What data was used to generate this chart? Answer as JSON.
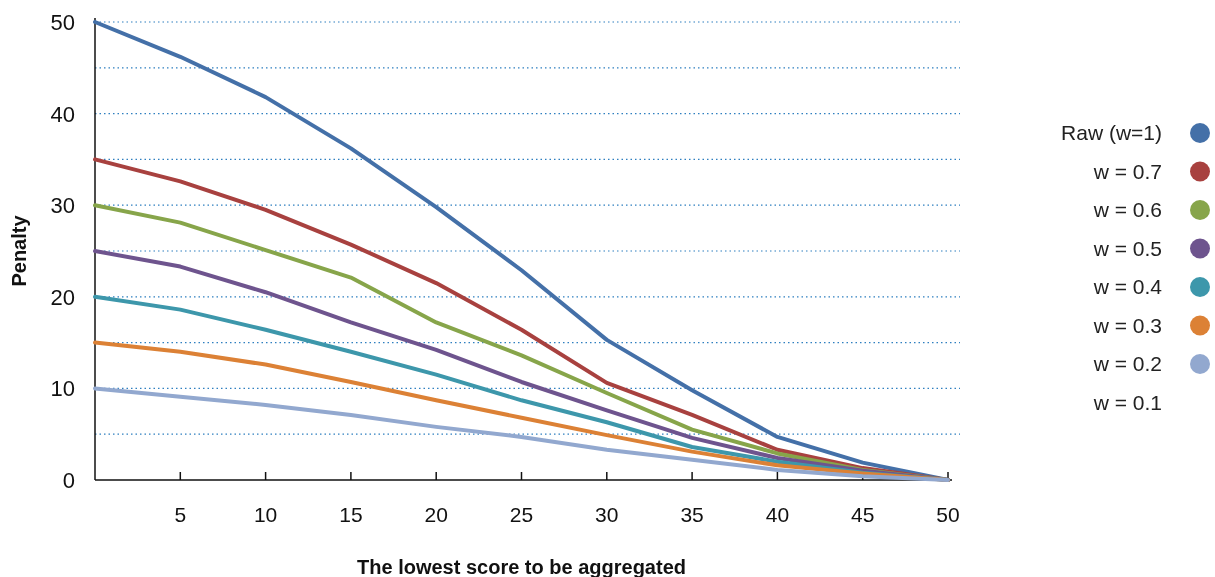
{
  "chart_data": {
    "type": "line",
    "xlabel": "The lowest score to be aggregated",
    "ylabel": "Penalty",
    "x": [
      0,
      5,
      10,
      15,
      20,
      25,
      30,
      35,
      40,
      45,
      50
    ],
    "series": [
      {
        "name": "Raw (w=1)",
        "color": "#4470a8",
        "values": [
          50,
          46.2,
          41.8,
          36.2,
          29.8,
          22.9,
          15.3,
          9.8,
          4.7,
          1.9,
          0
        ]
      },
      {
        "name": "w = 0.7",
        "color": "#a8413f",
        "values": [
          35,
          32.6,
          29.5,
          25.7,
          21.5,
          16.4,
          10.6,
          7.1,
          3.3,
          1.3,
          0
        ]
      },
      {
        "name": "w = 0.6",
        "color": "#87a54a",
        "values": [
          30,
          28.1,
          25.1,
          22.1,
          17.2,
          13.6,
          9.5,
          5.5,
          2.9,
          1.1,
          0
        ]
      },
      {
        "name": "w = 0.5",
        "color": "#6e548e",
        "values": [
          25,
          23.3,
          20.5,
          17.2,
          14.2,
          10.7,
          7.6,
          4.6,
          2.4,
          1.0,
          0
        ]
      },
      {
        "name": "w = 0.4",
        "color": "#3d97ab",
        "values": [
          20,
          18.6,
          16.4,
          14.0,
          11.5,
          8.7,
          6.3,
          3.6,
          2.0,
          0.8,
          0
        ]
      },
      {
        "name": "w = 0.3",
        "color": "#dc8135",
        "values": [
          15,
          14.0,
          12.6,
          10.7,
          8.7,
          6.8,
          4.9,
          3.1,
          1.6,
          0.7,
          0
        ]
      },
      {
        "name": "w = 0.2",
        "color": "#92a8cf",
        "values": [
          10,
          9.1,
          8.2,
          7.1,
          5.8,
          4.7,
          3.3,
          2.2,
          1.1,
          0.4,
          0
        ]
      }
    ],
    "annotations": [
      "w = 0.1"
    ],
    "xlim": [
      0,
      50
    ],
    "xticks": [
      5,
      10,
      15,
      20,
      25,
      30,
      35,
      40,
      45,
      50
    ],
    "ylim": [
      0,
      50
    ],
    "yticks": [
      0,
      {
        "value": 5,
        "label": null
      },
      10,
      {
        "value": 15,
        "label": null
      },
      20,
      {
        "value": 25,
        "label": null
      },
      30,
      {
        "value": 35,
        "label": null
      },
      40,
      {
        "value": 45,
        "label": null
      },
      50
    ],
    "grid": "y",
    "legend": "right",
    "line_style": "solid",
    "marker": "none"
  }
}
